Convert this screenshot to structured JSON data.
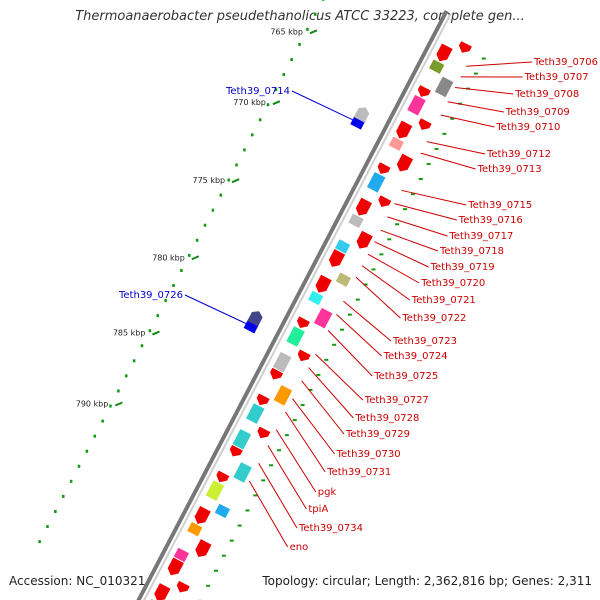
{
  "header": {
    "title": "Thermoanaerobacter pseudethanolicus ATCC 33223, complete gen..."
  },
  "footer": {
    "accession": "Accession: NC_010321",
    "topology": "Topology: circular; Length: 2,362,816 bp; Genes: 2,311"
  },
  "scale": {
    "ticks": [
      {
        "label": "765 kbp"
      },
      {
        "label": "770 kbp"
      },
      {
        "label": "775 kbp"
      },
      {
        "label": "780 kbp"
      },
      {
        "label": "785 kbp"
      },
      {
        "label": "790 kbp"
      }
    ]
  },
  "genes_reverse": [
    {
      "label": "Teth39_0714",
      "color": "#0000cc"
    },
    {
      "label": "Teth39_0726",
      "color": "#0000cc"
    }
  ],
  "genes_forward": [
    {
      "label": "Teth39_0706"
    },
    {
      "label": "Teth39_0707"
    },
    {
      "label": "Teth39_0708"
    },
    {
      "label": "Teth39_0709"
    },
    {
      "label": "Teth39_0710"
    },
    {
      "label": "Teth39_0712"
    },
    {
      "label": "Teth39_0713"
    },
    {
      "label": "Teth39_0715"
    },
    {
      "label": "Teth39_0716"
    },
    {
      "label": "Teth39_0717"
    },
    {
      "label": "Teth39_0718"
    },
    {
      "label": "Teth39_0719"
    },
    {
      "label": "Teth39_0720"
    },
    {
      "label": "Teth39_0721"
    },
    {
      "label": "Teth39_0722"
    },
    {
      "label": "Teth39_0723"
    },
    {
      "label": "Teth39_0724"
    },
    {
      "label": "Teth39_0725"
    },
    {
      "label": "Teth39_0727"
    },
    {
      "label": "Teth39_0728"
    },
    {
      "label": "Teth39_0729"
    },
    {
      "label": "Teth39_0730"
    },
    {
      "label": "Teth39_0731"
    },
    {
      "label": "pgk"
    },
    {
      "label": "tpiA"
    },
    {
      "label": "Teth39_0734"
    },
    {
      "label": "eno"
    }
  ],
  "colors": {
    "forward_label": "#cc0000",
    "reverse_label": "#0000cc",
    "cds": "#ee0000",
    "backbone": "#888888"
  }
}
